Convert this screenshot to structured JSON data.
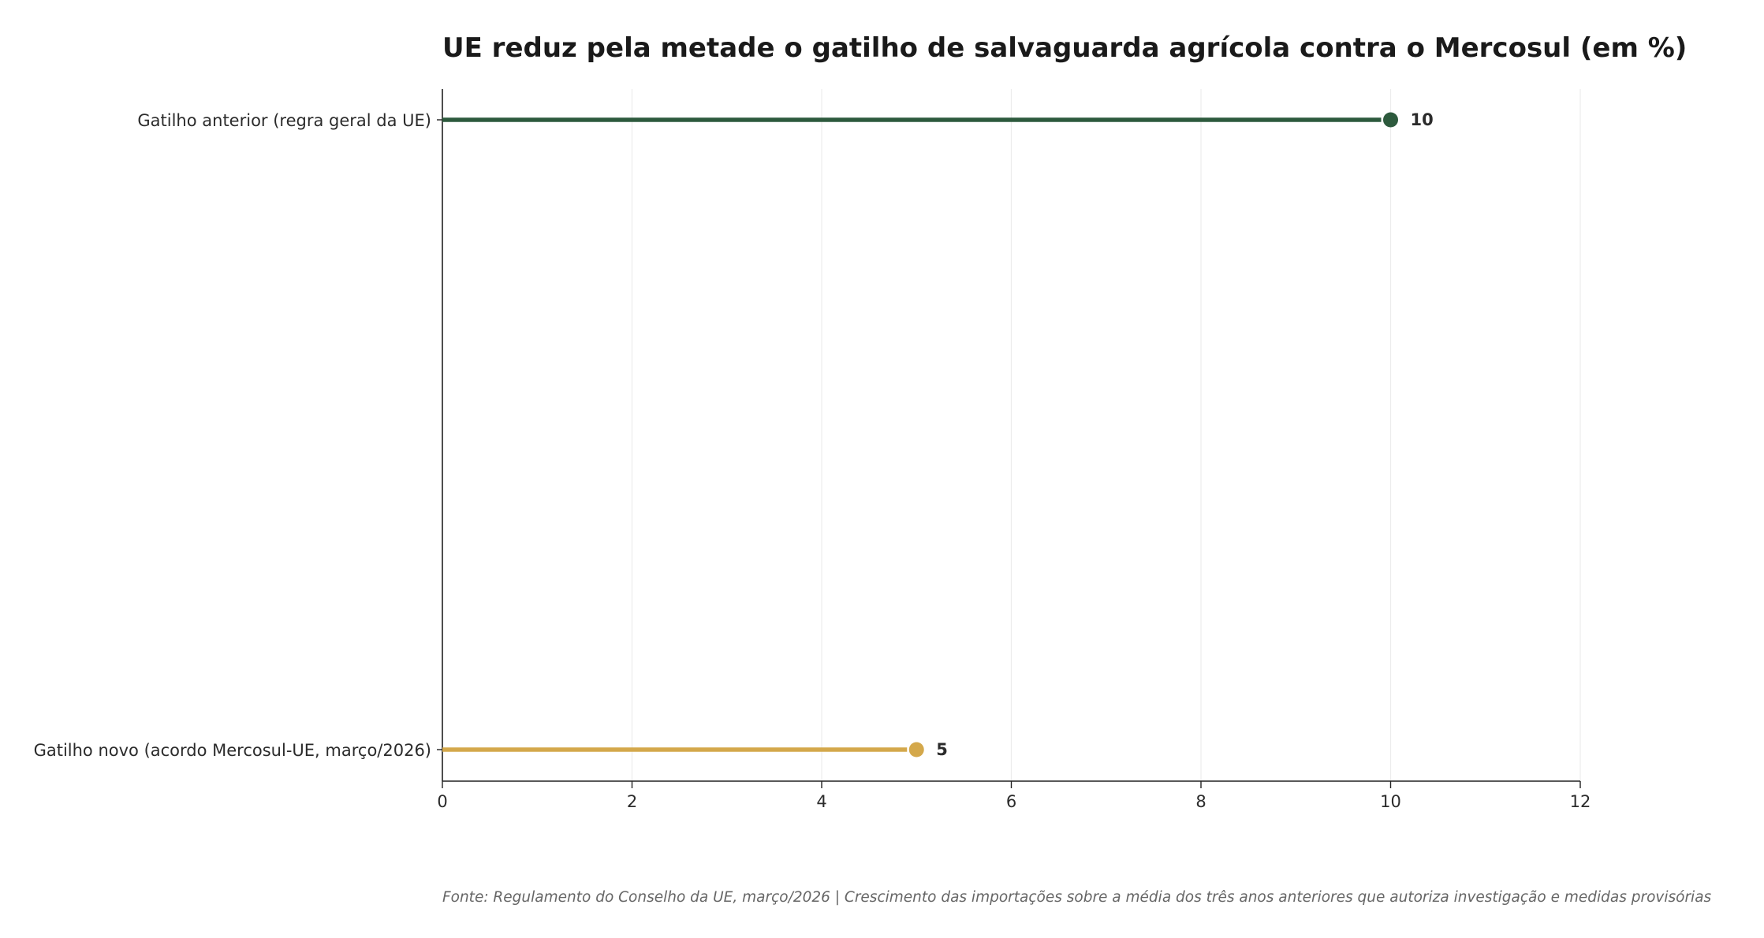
{
  "chart_data": {
    "type": "bar",
    "orientation": "horizontal",
    "style": "lollipop",
    "title": "UE reduz pela metade o gatilho de salvaguarda agrícola contra o Mercosul (em %)",
    "xlabel": "",
    "ylabel": "",
    "xlim": [
      0,
      12
    ],
    "xticks": [
      0,
      2,
      4,
      6,
      8,
      10,
      12
    ],
    "grid": "vertical",
    "categories": [
      "Gatilho anterior (regra geral da UE)",
      "Gatilho novo (acordo Mercosul-UE, março/2026)"
    ],
    "values": [
      10,
      5
    ],
    "value_labels": [
      "10",
      "5"
    ],
    "colors": [
      "#2d5a3d",
      "#d4a84b"
    ],
    "footnote": "Fonte: Regulamento do Conselho da UE, março/2026 | Crescimento das importações sobre a média dos três anos anteriores que autoriza investigação e medidas provisórias"
  }
}
